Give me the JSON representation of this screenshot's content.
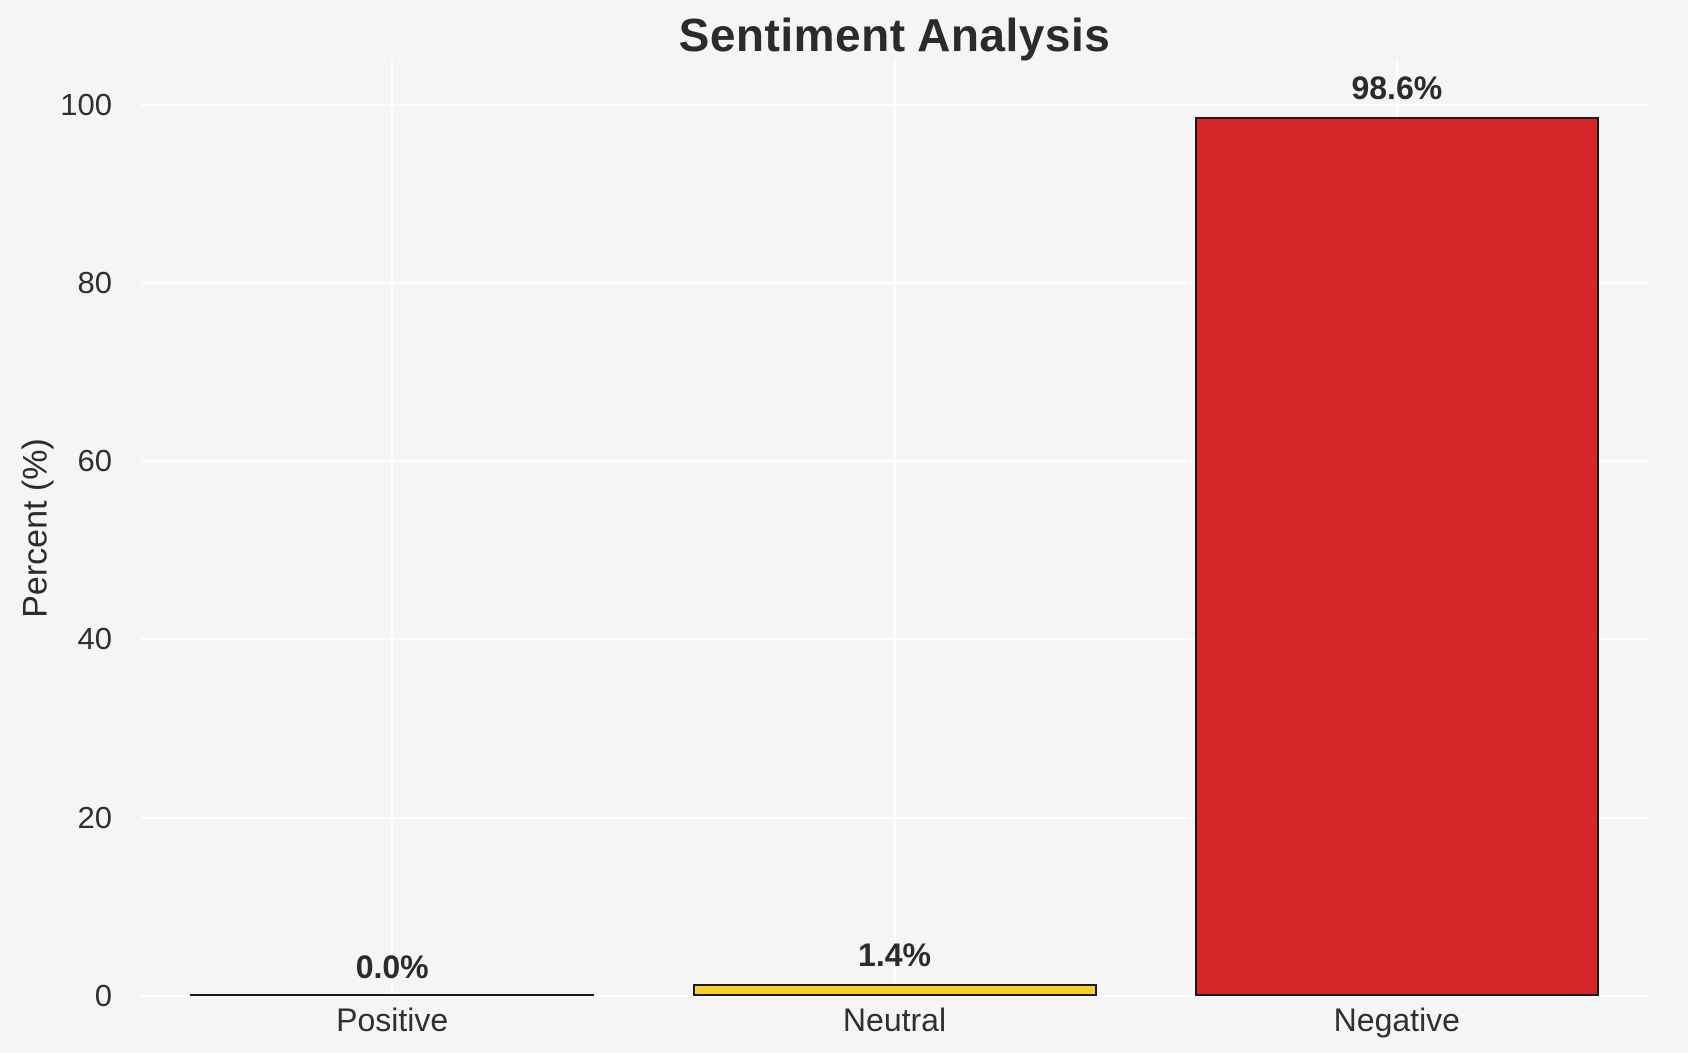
{
  "chart_data": {
    "type": "bar",
    "title": "Sentiment Analysis",
    "ylabel": "Percent (%)",
    "xlabel": "",
    "categories": [
      "Positive",
      "Neutral",
      "Negative"
    ],
    "values": [
      0.0,
      1.4,
      98.6
    ],
    "value_labels": [
      "0.0%",
      "1.4%",
      "98.6%"
    ],
    "bar_fill_colors": [
      null,
      "#F8D12B",
      "#D62728"
    ],
    "bar_edge_color": "#1A1A1A",
    "ytick_labels": [
      "0",
      "20",
      "40",
      "60",
      "80",
      "100"
    ],
    "ytick_values": [
      0,
      20,
      40,
      60,
      80,
      100
    ],
    "ylim": [
      0,
      105
    ],
    "grid": "on",
    "grid_color": "#FFFFFF",
    "background_color": "#F5F5F6",
    "text_color": "#2B2B2B",
    "legend_position": "none"
  }
}
